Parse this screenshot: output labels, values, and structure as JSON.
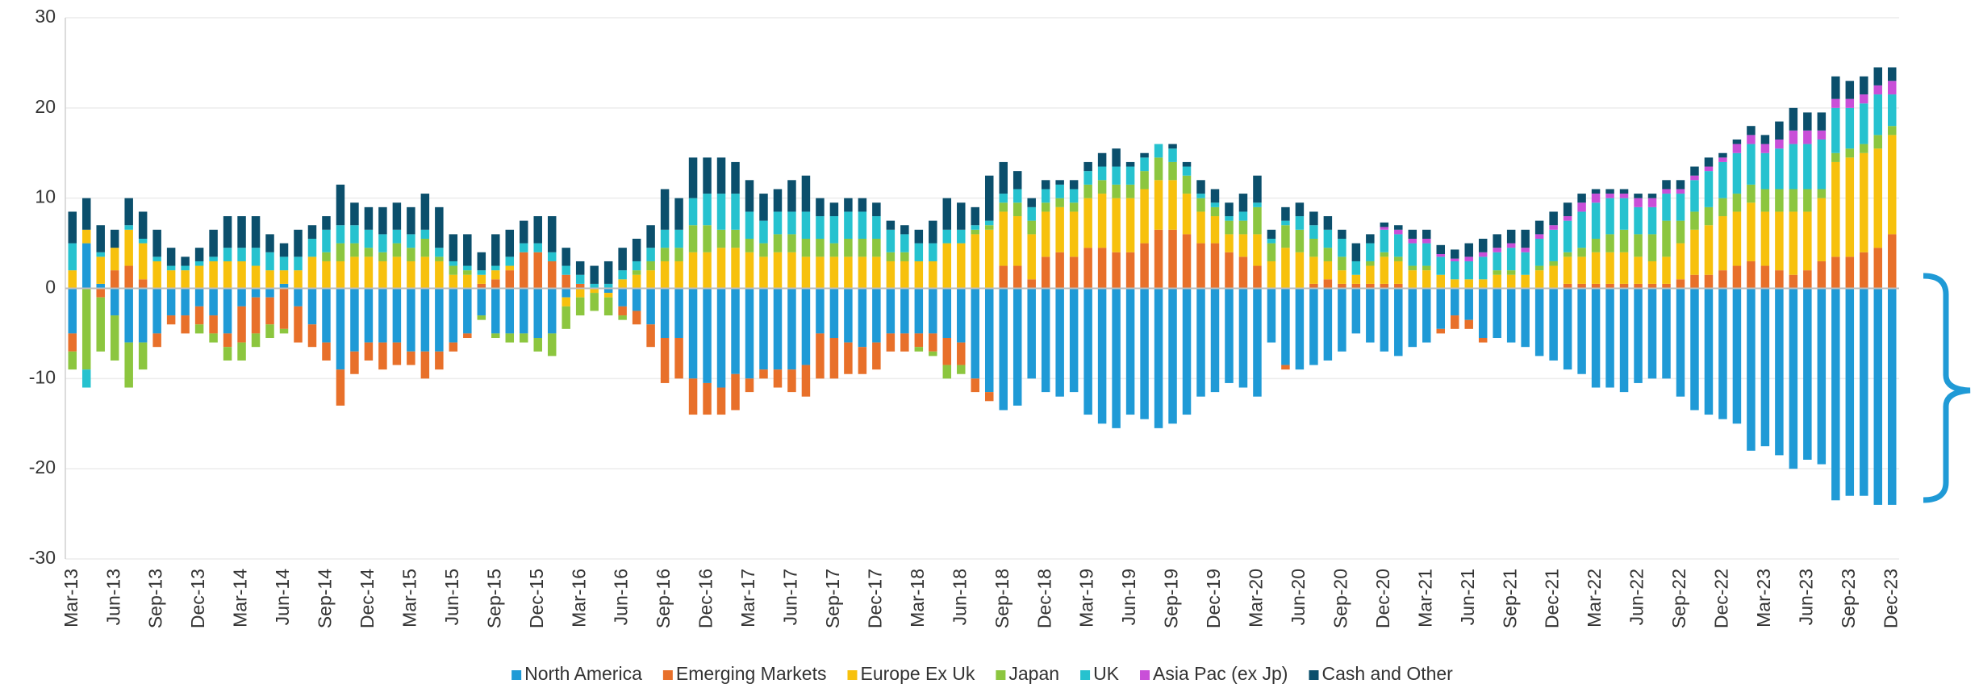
{
  "chart_data": {
    "type": "stacked_bar",
    "categories": [
      "Mar-13",
      null,
      null,
      "Jun-13",
      null,
      null,
      "Sep-13",
      null,
      null,
      "Dec-13",
      null,
      null,
      "Mar-14",
      null,
      null,
      "Jun-14",
      null,
      null,
      "Sep-14",
      null,
      null,
      "Dec-14",
      null,
      null,
      "Mar-15",
      null,
      null,
      "Jun-15",
      null,
      null,
      "Sep-15",
      null,
      null,
      "Dec-15",
      null,
      null,
      "Mar-16",
      null,
      null,
      "Jun-16",
      null,
      null,
      "Sep-16",
      null,
      null,
      "Dec-16",
      null,
      null,
      "Mar-17",
      null,
      null,
      "Jun-17",
      null,
      null,
      "Sep-17",
      null,
      null,
      "Dec-17",
      null,
      null,
      "Mar-18",
      null,
      null,
      "Jun-18",
      null,
      null,
      "Sep-18",
      null,
      null,
      "Dec-18",
      null,
      null,
      "Mar-19",
      null,
      null,
      "Jun-19",
      null,
      null,
      "Sep-19",
      null,
      null,
      "Dec-19",
      null,
      null,
      "Mar-20",
      null,
      null,
      "Jun-20",
      null,
      null,
      "Sep-20",
      null,
      null,
      "Dec-20",
      null,
      null,
      "Mar-21",
      null,
      null,
      "Jun-21",
      null,
      null,
      "Sep-21",
      null,
      null,
      "Dec-21",
      null,
      null,
      "Mar-22",
      null,
      null,
      "Jun-22",
      null,
      null,
      "Sep-22",
      null,
      null,
      "Dec-22",
      null,
      null,
      "Mar-23",
      null,
      null,
      "Jun-23",
      null,
      null,
      "Sep-23",
      null,
      null,
      "Dec-23"
    ],
    "series": [
      {
        "name": "North America",
        "color": "#1f9ad6",
        "values": [
          -5,
          5,
          0.5,
          -3,
          -6,
          -6,
          -5,
          -3,
          -3,
          -2,
          -3,
          -5,
          -2,
          -1,
          -1,
          0.5,
          -2,
          -4,
          -6,
          -9,
          -7,
          -6,
          -6,
          -6,
          -7,
          -7,
          -7,
          -6,
          -5,
          -3,
          -5,
          -5,
          -5,
          -5.5,
          -5,
          -1,
          0,
          0,
          -0.5,
          -2,
          -2.5,
          -4,
          -5.5,
          -5.5,
          -10,
          -10.5,
          -11,
          -9.5,
          -10,
          -9,
          -9,
          -9,
          -8.5,
          -5,
          -5.5,
          -6,
          -6.5,
          -6,
          -5,
          -5,
          -5,
          -5,
          -5.5,
          -6,
          -10,
          -11.5,
          -13.5,
          -13,
          -10,
          -11.5,
          -12,
          -11.5,
          -14,
          -15,
          -15.5,
          -14,
          -14.5,
          -15.5,
          -15,
          -14,
          -12,
          -11.5,
          -10.5,
          -11,
          -12,
          -6,
          -8.5,
          -9,
          -8.5,
          -8,
          -7,
          -5,
          -6,
          -7,
          -7.5,
          -6.5,
          -6,
          -4.5,
          -3,
          -3.5,
          -5.5,
          -5.5,
          -6,
          -6.5,
          -7.5,
          -8,
          -9,
          -9.5,
          -11,
          -11,
          -11.5,
          -10.5,
          -10,
          -10,
          -12,
          -13.5,
          -14,
          -14.5,
          -15,
          -18,
          -17.5,
          -18.5,
          -20,
          -19,
          -19.5,
          -23.5,
          -23,
          -23,
          -24,
          -24
        ]
      },
      {
        "name": "Emerging Markets",
        "color": "#e8702a",
        "values": [
          -2,
          0,
          -1,
          2,
          2.5,
          1,
          -1.5,
          -1,
          -2,
          -2,
          -2,
          -1.5,
          -4,
          -4,
          -3,
          -4.5,
          -4,
          -2.5,
          -2,
          -4,
          -2.5,
          -2,
          -3,
          -2.5,
          -1.5,
          -3,
          -2,
          -1,
          -0.5,
          0.5,
          1,
          2,
          4,
          4,
          3,
          1.5,
          0.5,
          0,
          0,
          -1,
          -1.5,
          -2.5,
          -5,
          -4.5,
          -4,
          -3.5,
          -3,
          -4,
          -1.5,
          -1,
          -2,
          -2.5,
          -3.5,
          -5,
          -4.5,
          -3.5,
          -3,
          -3,
          -2,
          -2,
          -1.5,
          -2,
          -3,
          -2.5,
          -1.5,
          -1,
          2.5,
          2.5,
          1,
          3.5,
          4,
          3.5,
          4.5,
          4.5,
          4,
          4,
          5,
          6.5,
          6.5,
          6,
          5,
          5,
          4,
          3.5,
          2.5,
          0,
          -0.5,
          0,
          0.5,
          1,
          0.5,
          0.5,
          0.5,
          0.5,
          0.5,
          0,
          0,
          -0.5,
          -1.5,
          -1,
          -0.5,
          0,
          0,
          0,
          0,
          0,
          0.5,
          0.5,
          0.5,
          0.5,
          0.5,
          0.5,
          0.5,
          0.5,
          1,
          1.5,
          1.5,
          2,
          2.5,
          3,
          2.5,
          2,
          1.5,
          2,
          3,
          3.5,
          3.5,
          4,
          4.5,
          6
        ]
      },
      {
        "name": "Europe Ex Uk",
        "color": "#f7c10d",
        "values": [
          2,
          1.5,
          3,
          2.5,
          4,
          4,
          3,
          2,
          2,
          2.5,
          3,
          3,
          3,
          2.5,
          2,
          1.5,
          2,
          3.5,
          3,
          3,
          3.5,
          3.5,
          3,
          3.5,
          3,
          3.5,
          3,
          1.5,
          1.5,
          1,
          1,
          0.5,
          0,
          0,
          0,
          -1,
          -1,
          -0.5,
          -0.5,
          1,
          1.5,
          2,
          3,
          3,
          4,
          4,
          4.5,
          4.5,
          4,
          3.5,
          4,
          4,
          3.5,
          3.5,
          3.5,
          3.5,
          3.5,
          3.5,
          3,
          3,
          3,
          3,
          5,
          5,
          6,
          6.5,
          6,
          5.5,
          5,
          5,
          5,
          5,
          5.5,
          6,
          6,
          6,
          6,
          5.5,
          5.5,
          4.5,
          3.5,
          3,
          2,
          2.5,
          3.5,
          3,
          4.5,
          4,
          3,
          2,
          1.5,
          1,
          2,
          3,
          2.5,
          2,
          2,
          1.5,
          1,
          1,
          1,
          1.5,
          1.5,
          1.5,
          2,
          2.5,
          3,
          3,
          3.5,
          3.5,
          3.5,
          3,
          2.5,
          3,
          4,
          5,
          5.5,
          6,
          6,
          6.5,
          6,
          6.5,
          7,
          6.5,
          7,
          10.5,
          11,
          11,
          11,
          11
        ]
      },
      {
        "name": "Japan",
        "color": "#8cc63f",
        "values": [
          -2,
          -9,
          -6,
          -5,
          -5,
          -3,
          0,
          0,
          0,
          -1,
          -1,
          -1.5,
          -2,
          -1.5,
          -1.5,
          -0.5,
          0,
          0,
          1,
          2,
          1.5,
          1,
          1,
          1.5,
          1.5,
          2,
          0.5,
          1,
          0.5,
          -0.5,
          -0.5,
          -1,
          -1,
          -1.5,
          -2.5,
          -2.5,
          -2,
          -2,
          -2,
          -0.5,
          0.5,
          1,
          1.5,
          1.5,
          3,
          3,
          2,
          2,
          1.5,
          1.5,
          2,
          2,
          2,
          2,
          1.5,
          2,
          2,
          2,
          1,
          1,
          -0.5,
          -0.5,
          -1.5,
          -1,
          0.5,
          0.5,
          1,
          1.5,
          1.5,
          1,
          1,
          1,
          1.5,
          1.5,
          1.5,
          1.5,
          2,
          2.5,
          2,
          2,
          1.5,
          1,
          1.5,
          1.5,
          3,
          2,
          2.5,
          2.5,
          2,
          1.5,
          1.5,
          0,
          0.5,
          0.5,
          0.5,
          0.5,
          0.5,
          0,
          0,
          0,
          0,
          0.5,
          0.5,
          0,
          0.5,
          0.5,
          0.5,
          1,
          1.5,
          2,
          2.5,
          2.5,
          3,
          4,
          2.5,
          2,
          2,
          2,
          2,
          2,
          2.5,
          2.5,
          2.5,
          2.5,
          1,
          1,
          1,
          1,
          1.5,
          1
        ]
      },
      {
        "name": "UK",
        "color": "#26c2cf",
        "values": [
          3,
          -2,
          0.5,
          0,
          0.5,
          0.5,
          0.5,
          0.5,
          0.5,
          0.5,
          0.5,
          1.5,
          1.5,
          2,
          2,
          1.5,
          1.5,
          2,
          2.5,
          2,
          2,
          2,
          2,
          1.5,
          1.5,
          1,
          1,
          0.5,
          0.5,
          0.5,
          0.5,
          1,
          1,
          1,
          1,
          1,
          1,
          0.5,
          0.5,
          1,
          1,
          1.5,
          2,
          2,
          3,
          3.5,
          4,
          4,
          3,
          2.5,
          2.5,
          2.5,
          3,
          2.5,
          3,
          3,
          3,
          2.5,
          2.5,
          2,
          2,
          2,
          1.5,
          1.5,
          0.5,
          0.5,
          1,
          1.5,
          1.5,
          1.5,
          1.5,
          1.5,
          1.5,
          1.5,
          2,
          2,
          1.5,
          1.5,
          1.5,
          1,
          0.5,
          0.5,
          0.5,
          1,
          0.5,
          0.5,
          0.5,
          1.5,
          1.5,
          2,
          2,
          1.5,
          2,
          2.5,
          2.5,
          2.5,
          2.5,
          2,
          2,
          2,
          2.5,
          2,
          2.5,
          2.5,
          3,
          3.5,
          3.5,
          4,
          4,
          4,
          3.5,
          3,
          3,
          3,
          3,
          3.5,
          4,
          4,
          4.5,
          4.5,
          4,
          4.5,
          5,
          5,
          5.5,
          5,
          4.5,
          4.5,
          4.5,
          3.5
        ]
      },
      {
        "name": "Asia Pac (ex Jp)",
        "color": "#c94fd8",
        "values": [
          0,
          0,
          0,
          0,
          0,
          0,
          0,
          0,
          0,
          0,
          0,
          0,
          0,
          0,
          0,
          0,
          0,
          0,
          0,
          0,
          0,
          0,
          0,
          0,
          0,
          0,
          0,
          0,
          0,
          0,
          0,
          0,
          0,
          0,
          0,
          0,
          0,
          0,
          0,
          0,
          0,
          0,
          0,
          0,
          0,
          0,
          0,
          0,
          0,
          0,
          0,
          0,
          0,
          0,
          0,
          0,
          0,
          0,
          0,
          0,
          0,
          0,
          0,
          0,
          0,
          0,
          0,
          0,
          0,
          0,
          0,
          0,
          0,
          0,
          0,
          0,
          0,
          0,
          0,
          0,
          0,
          0,
          0,
          0,
          0,
          0,
          0,
          0,
          0,
          0,
          0,
          0,
          0,
          0.3,
          0.5,
          0.5,
          0.5,
          0.3,
          0.3,
          0.5,
          0.5,
          0.5,
          0.5,
          0.5,
          0.5,
          0.5,
          0.5,
          1,
          1,
          0.5,
          0.5,
          1,
          1,
          0.5,
          0.5,
          0.5,
          0.5,
          0.5,
          1,
          1,
          1,
          1,
          1.5,
          1.5,
          1,
          1,
          1,
          1,
          1,
          1.5
        ]
      },
      {
        "name": "Cash and Other",
        "color": "#0b4f6c",
        "values": [
          3.5,
          3.5,
          3,
          2,
          3,
          3,
          3,
          2,
          1,
          1.5,
          3,
          3.5,
          3.5,
          3.5,
          2,
          1.5,
          3,
          1.5,
          1.5,
          4.5,
          2.5,
          2.5,
          3,
          3,
          3,
          4,
          4.5,
          3,
          3.5,
          2,
          3.5,
          3,
          2.5,
          3,
          4,
          2,
          1.5,
          2,
          2.5,
          2.5,
          2.5,
          2.5,
          4.5,
          3.5,
          4.5,
          4,
          4,
          3.5,
          3.5,
          3,
          2.5,
          3.5,
          4,
          2,
          1.5,
          1.5,
          1.5,
          1.5,
          1,
          1,
          1.5,
          2.5,
          3.5,
          3,
          2,
          5,
          3.5,
          2,
          1,
          1,
          0.5,
          1,
          1,
          1.5,
          2,
          0.5,
          0.5,
          0,
          0.5,
          0.5,
          1.5,
          1.5,
          1.5,
          2,
          3,
          1,
          1.5,
          1.5,
          1.5,
          1.5,
          1,
          2,
          1,
          0.5,
          0.5,
          1,
          1,
          1,
          1,
          1.5,
          1.5,
          1.5,
          1.5,
          2,
          1.5,
          1.5,
          1.5,
          1,
          0.5,
          0.5,
          0.5,
          0.5,
          0.5,
          1,
          1,
          1,
          1,
          0.5,
          0.5,
          1,
          1,
          2,
          2.5,
          2,
          2,
          2.5,
          2,
          2,
          2,
          1.5
        ]
      }
    ],
    "ylim": [
      -30,
      30
    ],
    "yticks": [
      -30,
      -20,
      -10,
      0,
      10,
      20,
      30
    ],
    "grid": true,
    "legend": "bottom"
  }
}
